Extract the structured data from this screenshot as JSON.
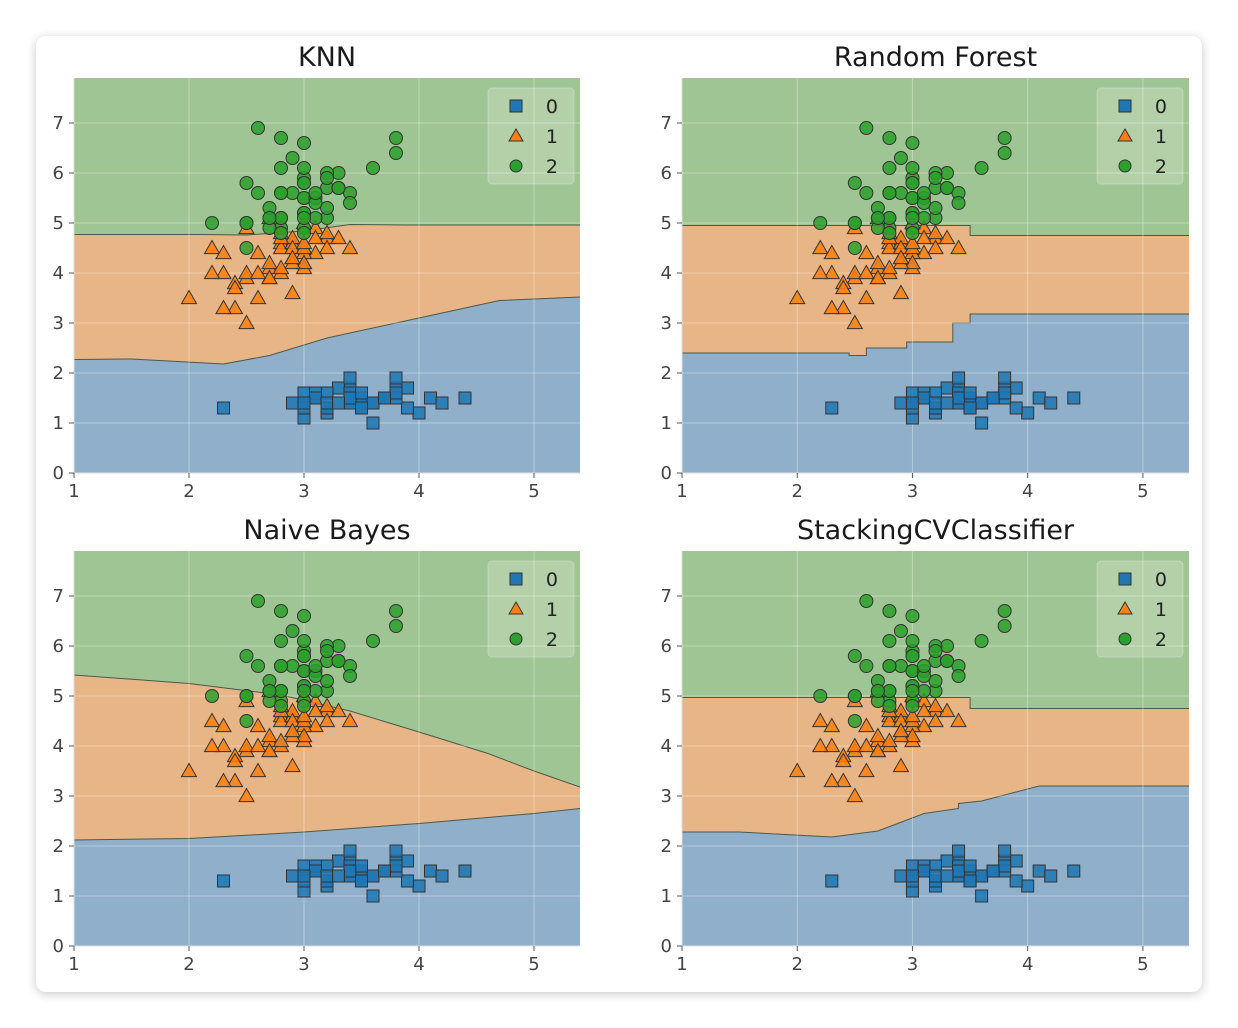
{
  "colors": {
    "class_0": "#1f77b4",
    "class_1": "#ff7f0e",
    "class_2": "#2ca02c",
    "region_0": "#8fafcb",
    "region_1": "#e8b587",
    "region_2": "#a0c594"
  },
  "chart_data": [
    {
      "type": "scatter",
      "title": "KNN",
      "xlim": [
        1,
        5.4
      ],
      "ylim": [
        0,
        7.9
      ],
      "xticks": [
        "1",
        "2",
        "3",
        "4",
        "5"
      ],
      "yticks": [
        "0",
        "1",
        "2",
        "3",
        "4",
        "5",
        "6",
        "7"
      ],
      "legend": {
        "placement": "top-right",
        "entries": [
          "0",
          "1",
          "2"
        ]
      },
      "grid": true,
      "boundary_01": [
        [
          1,
          2.27
        ],
        [
          1.5,
          2.28
        ],
        [
          2.3,
          2.18
        ],
        [
          2.7,
          2.35
        ],
        [
          3.2,
          2.7
        ],
        [
          3.8,
          3.0
        ],
        [
          4.3,
          3.25
        ],
        [
          4.7,
          3.45
        ],
        [
          5.4,
          3.52
        ]
      ],
      "boundary_12": [
        [
          1,
          4.77
        ],
        [
          2.1,
          4.77
        ],
        [
          2.5,
          4.76
        ],
        [
          3.0,
          4.84
        ],
        [
          3.4,
          4.97
        ],
        [
          3.9,
          4.96
        ],
        [
          4.5,
          4.96
        ],
        [
          5.4,
          4.96
        ]
      ]
    },
    {
      "type": "scatter",
      "title": "Random Forest",
      "xlim": [
        1,
        5.4
      ],
      "ylim": [
        0,
        7.9
      ],
      "xticks": [
        "1",
        "2",
        "3",
        "4",
        "5"
      ],
      "yticks": [
        "0",
        "1",
        "2",
        "3",
        "4",
        "5",
        "6",
        "7"
      ],
      "legend": {
        "placement": "top-right",
        "entries": [
          "0",
          "1",
          "2"
        ]
      },
      "grid": true,
      "boundary_01": [
        [
          1,
          2.4
        ],
        [
          2.45,
          2.4
        ],
        [
          2.45,
          2.35
        ],
        [
          2.6,
          2.35
        ],
        [
          2.6,
          2.5
        ],
        [
          2.95,
          2.5
        ],
        [
          2.95,
          2.62
        ],
        [
          3.35,
          2.62
        ],
        [
          3.35,
          3.0
        ],
        [
          3.5,
          3.0
        ],
        [
          3.5,
          3.18
        ],
        [
          5.4,
          3.18
        ]
      ],
      "boundary_12": [
        [
          1,
          4.95
        ],
        [
          3.5,
          4.95
        ],
        [
          3.5,
          4.75
        ],
        [
          5.4,
          4.75
        ]
      ]
    },
    {
      "type": "scatter",
      "title": "Naive Bayes",
      "xlim": [
        1,
        5.4
      ],
      "ylim": [
        0,
        7.9
      ],
      "xticks": [
        "1",
        "2",
        "3",
        "4",
        "5"
      ],
      "yticks": [
        "0",
        "1",
        "2",
        "3",
        "4",
        "5",
        "6",
        "7"
      ],
      "legend": {
        "placement": "top-right",
        "entries": [
          "0",
          "1",
          "2"
        ]
      },
      "grid": true,
      "boundary_01": [
        [
          1,
          2.12
        ],
        [
          2,
          2.15
        ],
        [
          3,
          2.28
        ],
        [
          4,
          2.45
        ],
        [
          5,
          2.65
        ],
        [
          5.4,
          2.75
        ]
      ],
      "boundary_12": [
        [
          1,
          5.42
        ],
        [
          2,
          5.25
        ],
        [
          2.8,
          5.02
        ],
        [
          3.4,
          4.7
        ],
        [
          4,
          4.28
        ],
        [
          4.6,
          3.85
        ],
        [
          5,
          3.5
        ],
        [
          5.4,
          3.18
        ]
      ]
    },
    {
      "type": "scatter",
      "title": "StackingCVClassifier",
      "xlim": [
        1,
        5.4
      ],
      "ylim": [
        0,
        7.9
      ],
      "xticks": [
        "1",
        "2",
        "3",
        "4",
        "5"
      ],
      "yticks": [
        "0",
        "1",
        "2",
        "3",
        "4",
        "5",
        "6",
        "7"
      ],
      "legend": {
        "placement": "top-right",
        "entries": [
          "0",
          "1",
          "2"
        ]
      },
      "grid": true,
      "boundary_01": [
        [
          1,
          2.28
        ],
        [
          1.5,
          2.28
        ],
        [
          2.3,
          2.18
        ],
        [
          2.7,
          2.3
        ],
        [
          3.1,
          2.65
        ],
        [
          3.4,
          2.75
        ],
        [
          3.4,
          2.85
        ],
        [
          3.6,
          2.9
        ],
        [
          4.1,
          3.2
        ],
        [
          5.4,
          3.2
        ]
      ],
      "boundary_12": [
        [
          1,
          4.97
        ],
        [
          3.5,
          4.97
        ],
        [
          3.5,
          4.75
        ],
        [
          5.4,
          4.75
        ]
      ]
    }
  ],
  "points": {
    "class_0": [
      [
        3.5,
        1.4
      ],
      [
        3.0,
        1.4
      ],
      [
        3.2,
        1.3
      ],
      [
        3.1,
        1.5
      ],
      [
        3.6,
        1.4
      ],
      [
        3.9,
        1.7
      ],
      [
        3.4,
        1.4
      ],
      [
        3.4,
        1.5
      ],
      [
        2.9,
        1.4
      ],
      [
        3.1,
        1.5
      ],
      [
        3.7,
        1.5
      ],
      [
        3.4,
        1.6
      ],
      [
        3.0,
        1.4
      ],
      [
        3.0,
        1.1
      ],
      [
        4.0,
        1.2
      ],
      [
        4.4,
        1.5
      ],
      [
        3.9,
        1.3
      ],
      [
        3.5,
        1.4
      ],
      [
        3.8,
        1.7
      ],
      [
        3.8,
        1.5
      ],
      [
        3.4,
        1.7
      ],
      [
        3.7,
        1.5
      ],
      [
        3.6,
        1.0
      ],
      [
        3.3,
        1.7
      ],
      [
        3.4,
        1.9
      ],
      [
        3.0,
        1.6
      ],
      [
        3.4,
        1.6
      ],
      [
        3.5,
        1.5
      ],
      [
        3.4,
        1.4
      ],
      [
        3.2,
        1.6
      ],
      [
        3.1,
        1.6
      ],
      [
        3.4,
        1.5
      ],
      [
        4.1,
        1.5
      ],
      [
        4.2,
        1.4
      ],
      [
        3.1,
        1.5
      ],
      [
        3.2,
        1.2
      ],
      [
        3.5,
        1.3
      ],
      [
        3.6,
        1.4
      ],
      [
        3.0,
        1.3
      ],
      [
        3.4,
        1.5
      ],
      [
        3.5,
        1.3
      ],
      [
        2.3,
        1.3
      ],
      [
        3.2,
        1.3
      ],
      [
        3.5,
        1.6
      ],
      [
        3.8,
        1.9
      ],
      [
        3.0,
        1.4
      ],
      [
        3.8,
        1.6
      ],
      [
        3.2,
        1.4
      ],
      [
        3.7,
        1.5
      ],
      [
        3.3,
        1.4
      ]
    ],
    "class_1": [
      [
        3.2,
        4.7
      ],
      [
        3.2,
        4.5
      ],
      [
        3.1,
        4.9
      ],
      [
        2.3,
        4.0
      ],
      [
        2.8,
        4.6
      ],
      [
        2.8,
        4.5
      ],
      [
        3.3,
        4.7
      ],
      [
        2.4,
        3.3
      ],
      [
        2.9,
        4.6
      ],
      [
        2.7,
        3.9
      ],
      [
        2.0,
        3.5
      ],
      [
        3.0,
        4.2
      ],
      [
        2.2,
        4.0
      ],
      [
        2.9,
        4.7
      ],
      [
        2.9,
        3.6
      ],
      [
        3.1,
        4.4
      ],
      [
        3.0,
        4.5
      ],
      [
        2.7,
        4.1
      ],
      [
        2.2,
        4.5
      ],
      [
        2.5,
        3.9
      ],
      [
        3.2,
        4.8
      ],
      [
        2.8,
        4.0
      ],
      [
        2.5,
        4.9
      ],
      [
        2.8,
        4.7
      ],
      [
        2.9,
        4.3
      ],
      [
        3.0,
        4.4
      ],
      [
        2.8,
        4.8
      ],
      [
        3.0,
        5.0
      ],
      [
        2.9,
        4.5
      ],
      [
        2.6,
        3.5
      ],
      [
        2.4,
        3.8
      ],
      [
        2.4,
        3.7
      ],
      [
        2.7,
        3.9
      ],
      [
        2.7,
        5.1
      ],
      [
        3.0,
        4.5
      ],
      [
        3.4,
        4.5
      ],
      [
        3.1,
        4.7
      ],
      [
        2.3,
        4.4
      ],
      [
        3.0,
        4.1
      ],
      [
        2.5,
        4.0
      ],
      [
        2.6,
        4.4
      ],
      [
        3.0,
        4.6
      ],
      [
        2.6,
        4.0
      ],
      [
        2.3,
        3.3
      ],
      [
        2.7,
        4.2
      ],
      [
        3.0,
        4.2
      ],
      [
        2.9,
        4.2
      ],
      [
        2.9,
        4.3
      ],
      [
        2.5,
        3.0
      ],
      [
        2.8,
        4.1
      ]
    ],
    "class_2": [
      [
        3.3,
        6.0
      ],
      [
        2.7,
        5.1
      ],
      [
        3.0,
        5.9
      ],
      [
        2.9,
        5.6
      ],
      [
        3.0,
        5.8
      ],
      [
        3.0,
        6.6
      ],
      [
        2.5,
        4.5
      ],
      [
        2.9,
        6.3
      ],
      [
        2.5,
        5.8
      ],
      [
        3.6,
        6.1
      ],
      [
        3.2,
        5.1
      ],
      [
        2.7,
        5.3
      ],
      [
        3.0,
        5.5
      ],
      [
        2.5,
        5.0
      ],
      [
        2.8,
        5.1
      ],
      [
        3.2,
        5.3
      ],
      [
        3.0,
        5.5
      ],
      [
        3.8,
        6.7
      ],
      [
        2.6,
        6.9
      ],
      [
        2.2,
        5.0
      ],
      [
        3.2,
        5.7
      ],
      [
        2.8,
        4.9
      ],
      [
        2.8,
        6.7
      ],
      [
        2.7,
        4.9
      ],
      [
        3.3,
        5.7
      ],
      [
        3.2,
        6.0
      ],
      [
        2.8,
        4.8
      ],
      [
        3.0,
        4.9
      ],
      [
        2.8,
        5.6
      ],
      [
        3.0,
        5.8
      ],
      [
        2.8,
        6.1
      ],
      [
        3.8,
        6.4
      ],
      [
        2.8,
        5.6
      ],
      [
        2.8,
        5.1
      ],
      [
        2.6,
        5.6
      ],
      [
        3.0,
        6.1
      ],
      [
        3.4,
        5.6
      ],
      [
        3.1,
        5.5
      ],
      [
        3.0,
        4.8
      ],
      [
        3.1,
        5.4
      ],
      [
        3.1,
        5.6
      ],
      [
        3.1,
        5.1
      ],
      [
        2.7,
        5.1
      ],
      [
        3.2,
        5.9
      ],
      [
        3.3,
        5.7
      ],
      [
        3.0,
        5.2
      ],
      [
        2.5,
        5.0
      ],
      [
        3.0,
        5.2
      ],
      [
        3.4,
        5.4
      ],
      [
        3.0,
        5.1
      ]
    ]
  }
}
